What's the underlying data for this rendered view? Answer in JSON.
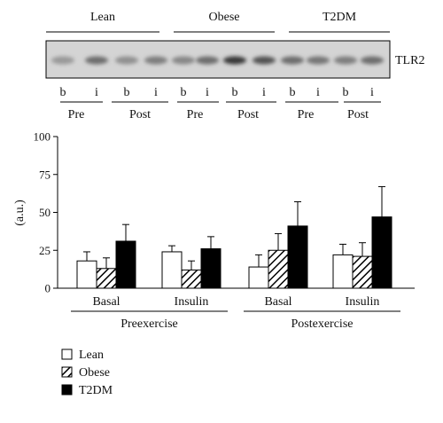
{
  "blot": {
    "groups": [
      "Lean",
      "Obese",
      "T2DM"
    ],
    "lanes": [
      "b",
      "i",
      "b",
      "i",
      "b",
      "i",
      "b",
      "i",
      "b",
      "i",
      "b",
      "i"
    ],
    "lane_darkness": [
      0.3,
      0.55,
      0.35,
      0.45,
      0.4,
      0.55,
      0.85,
      0.7,
      0.55,
      0.5,
      0.45,
      0.55
    ],
    "phases": [
      "Pre",
      "Post",
      "Pre",
      "Post",
      "Pre",
      "Post"
    ],
    "protein": "TLR2"
  },
  "chart_data": {
    "type": "bar",
    "ylabel": "(a.u.)",
    "ylim": [
      0,
      100
    ],
    "yticks": [
      0,
      25,
      50,
      75,
      100
    ],
    "categories": [
      "Basal",
      "Insulin",
      "Basal",
      "Insulin"
    ],
    "super_categories": [
      {
        "label": "Preexercise",
        "span": [
          0,
          1
        ]
      },
      {
        "label": "Postexercise",
        "span": [
          2,
          3
        ]
      }
    ],
    "series": [
      {
        "name": "Lean",
        "values": [
          18,
          24,
          14,
          22
        ],
        "errors": [
          6,
          4,
          8,
          7
        ],
        "fill": "#ffffff",
        "pattern": "none"
      },
      {
        "name": "Obese",
        "values": [
          13,
          12,
          25,
          21
        ],
        "errors": [
          7,
          6,
          11,
          9
        ],
        "fill": "#ffffff",
        "pattern": "hatch"
      },
      {
        "name": "T2DM",
        "values": [
          31,
          26,
          41,
          47
        ],
        "errors": [
          11,
          8,
          16,
          20
        ],
        "fill": "#000000",
        "pattern": "none"
      }
    ],
    "legend_position": "bottom-left",
    "grid": false
  }
}
